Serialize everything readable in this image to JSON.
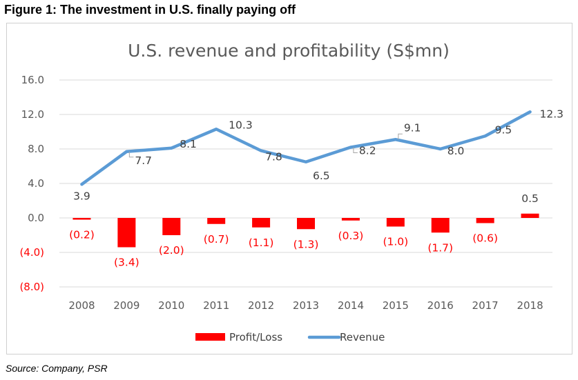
{
  "figure_title": "Figure 1: The investment in U.S. finally paying off",
  "source": "Source: Company, PSR",
  "chart_data": {
    "type": "bar+line",
    "title": "U.S. revenue and profitability (S$mn)",
    "xlabel": "",
    "ylabel": "",
    "ylim": [
      -8,
      16
    ],
    "y_ticks": [
      16,
      12,
      8,
      4,
      0,
      -4,
      -8
    ],
    "y_tick_labels": [
      "16.0",
      "12.0",
      "8.0",
      "4.0",
      "0.0",
      "(4.0)",
      "(8.0)"
    ],
    "grid": true,
    "legend_position": "bottom",
    "categories": [
      "2008",
      "2009",
      "2010",
      "2011",
      "2012",
      "2013",
      "2014",
      "2015",
      "2016",
      "2017",
      "2018"
    ],
    "series": [
      {
        "name": "Profit/Loss",
        "type": "bar",
        "color": "#ff0000",
        "label_color": "#ff0000",
        "values": [
          -0.2,
          -3.4,
          -2.0,
          -0.7,
          -1.1,
          -1.3,
          -0.3,
          -1.0,
          -1.7,
          -0.6,
          0.5
        ],
        "labels": [
          "(0.2)",
          "(3.4)",
          "(2.0)",
          "(0.7)",
          "(1.1)",
          "(1.3)",
          "(0.3)",
          "(1.0)",
          "(1.7)",
          "(0.6)",
          "0.5"
        ]
      },
      {
        "name": "Revenue",
        "type": "line",
        "color": "#5b9bd5",
        "label_color": "#404040",
        "values": [
          3.9,
          7.7,
          8.1,
          10.3,
          7.8,
          6.5,
          8.2,
          9.1,
          8.0,
          9.5,
          12.3
        ],
        "labels": [
          "3.9",
          "7.7",
          "8.1",
          "10.3",
          "7.8",
          "6.5",
          "8.2",
          "9.1",
          "8.0",
          "9.5",
          "12.3"
        ]
      }
    ],
    "negative_tick_color": "#ff0000",
    "positive_tick_color": "#595959"
  }
}
